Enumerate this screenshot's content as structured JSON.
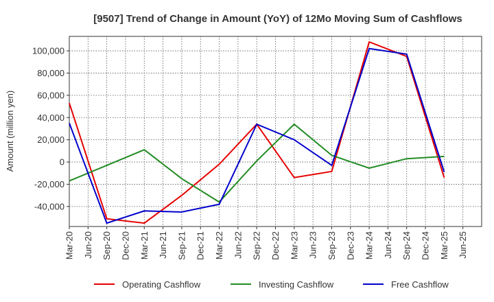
{
  "chart_data": {
    "type": "line",
    "title": "[9507]  Trend of Change in Amount (YoY) of 12Mo Moving Sum of Cashflows",
    "ylabel": "Amount (million yen)",
    "xlabel": "",
    "ylim": [
      -58000,
      113000
    ],
    "yticks": [
      -40000,
      -20000,
      0,
      20000,
      40000,
      60000,
      80000,
      100000
    ],
    "ytick_labels": [
      "-40,000",
      "-20,000",
      "0",
      "20,000",
      "40,000",
      "60,000",
      "80,000",
      "100,000"
    ],
    "categories": [
      "Mar-20",
      "Jun-20",
      "Sep-20",
      "Dec-20",
      "Mar-21",
      "Jun-21",
      "Sep-21",
      "Dec-21",
      "Mar-22",
      "Jun-22",
      "Sep-22",
      "Dec-22",
      "Mar-23",
      "Jun-23",
      "Sep-23",
      "Dec-23",
      "Mar-24",
      "Jun-24",
      "Sep-24",
      "Dec-24",
      "Mar-25",
      "Jun-25"
    ],
    "series": [
      {
        "name": "Operating Cashflow",
        "color": "#e60000",
        "x": [
          "Mar-20",
          "Sep-20",
          "Mar-21",
          "Sep-21",
          "Mar-22",
          "Sep-22",
          "Mar-23",
          "Sep-23",
          "Mar-24",
          "Sep-24",
          "Mar-25"
        ],
        "values": [
          53000,
          -51000,
          -55000,
          -30000,
          -2000,
          34000,
          -14000,
          -8500,
          108000,
          95000,
          -14000
        ]
      },
      {
        "name": "Investing Cashflow",
        "color": "#228b22",
        "x": [
          "Mar-20",
          "Sep-20",
          "Mar-21",
          "Sep-21",
          "Mar-22",
          "Sep-22",
          "Mar-23",
          "Sep-23",
          "Mar-24",
          "Sep-24",
          "Mar-25"
        ],
        "values": [
          -17000,
          -3000,
          11000,
          -15000,
          -36000,
          1000,
          34000,
          6000,
          -5500,
          3000,
          5000
        ]
      },
      {
        "name": "Free Cashflow",
        "color": "#0000cc",
        "x": [
          "Mar-20",
          "Sep-20",
          "Mar-21",
          "Sep-21",
          "Mar-22",
          "Sep-22",
          "Mar-23",
          "Sep-23",
          "Mar-24",
          "Sep-24",
          "Mar-25"
        ],
        "values": [
          35000,
          -55000,
          -44000,
          -45000,
          -38000,
          34000,
          20000,
          -3000,
          102000,
          97000,
          -9000
        ]
      }
    ],
    "grid": true,
    "legend_position": "bottom"
  }
}
